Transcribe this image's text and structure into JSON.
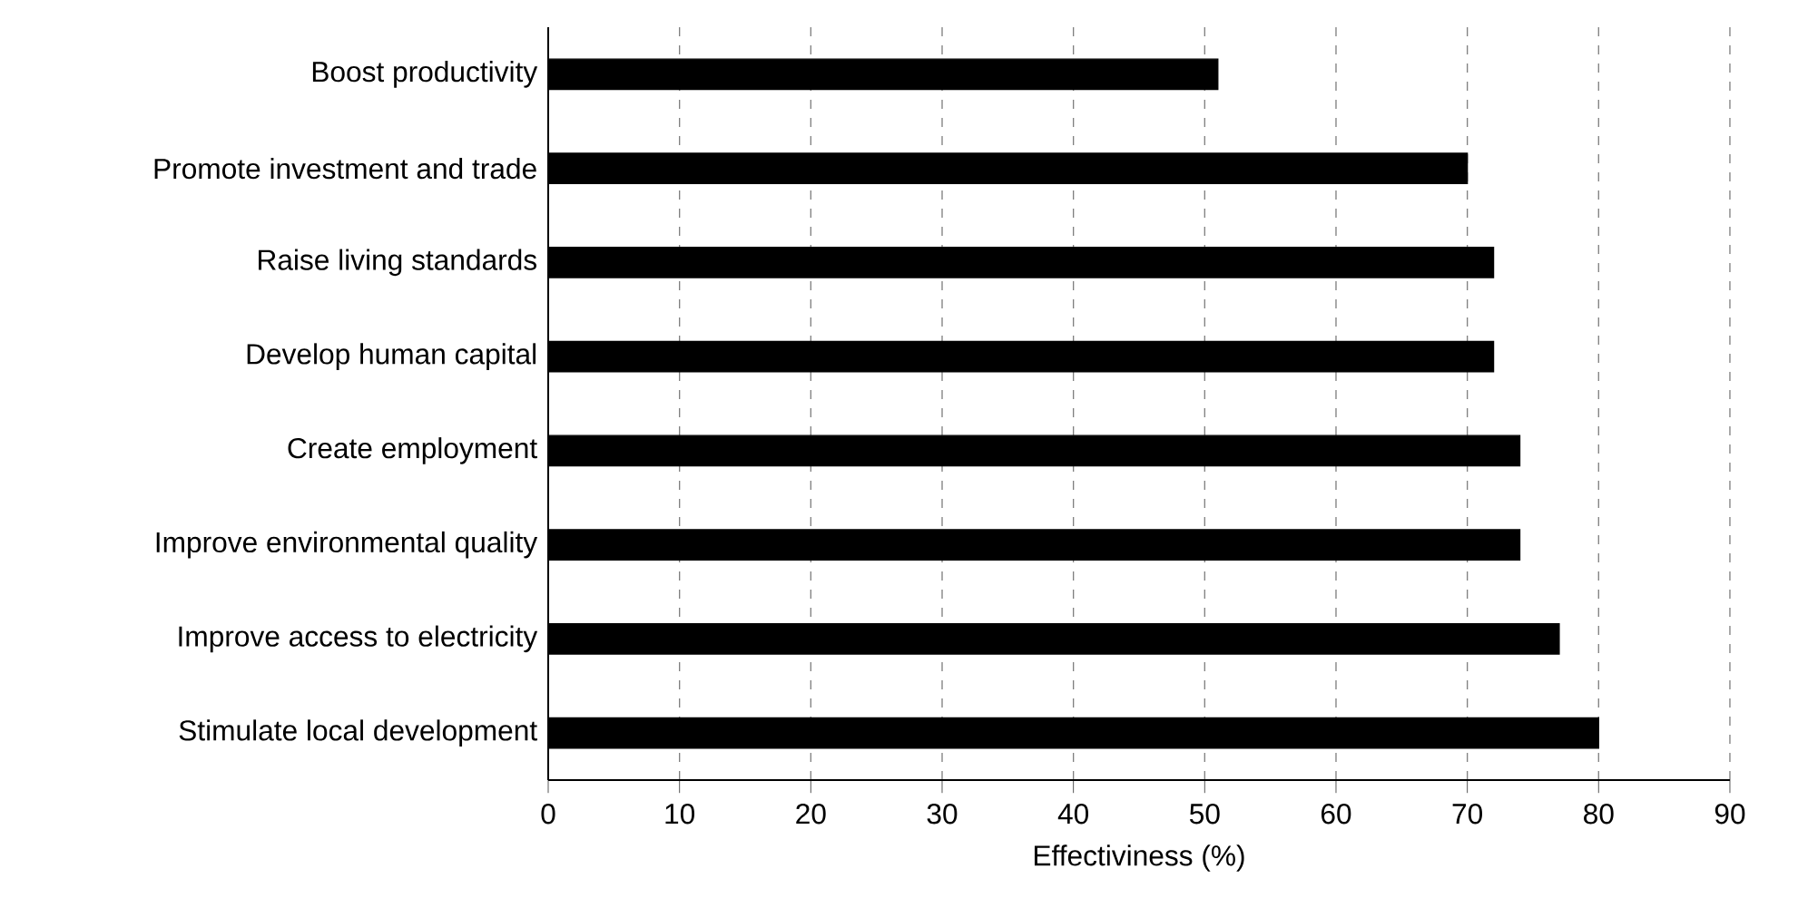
{
  "chart_data": {
    "type": "bar",
    "orientation": "horizontal",
    "xlabel": "Effectiviness (%)",
    "categories": [
      "Boost productivity",
      "Promote investment and trade",
      "Raise living standards",
      "Develop human capital",
      "Create employment",
      "Improve environmental quality",
      "Improve access to electricity",
      "Stimulate local development"
    ],
    "values": [
      51,
      70,
      72,
      72,
      74,
      74,
      77,
      80
    ],
    "color": "#000000",
    "xlim": [
      0,
      90
    ],
    "xticks": [
      0,
      10,
      20,
      30,
      40,
      50,
      60,
      70,
      80,
      90
    ],
    "grid": "x"
  }
}
